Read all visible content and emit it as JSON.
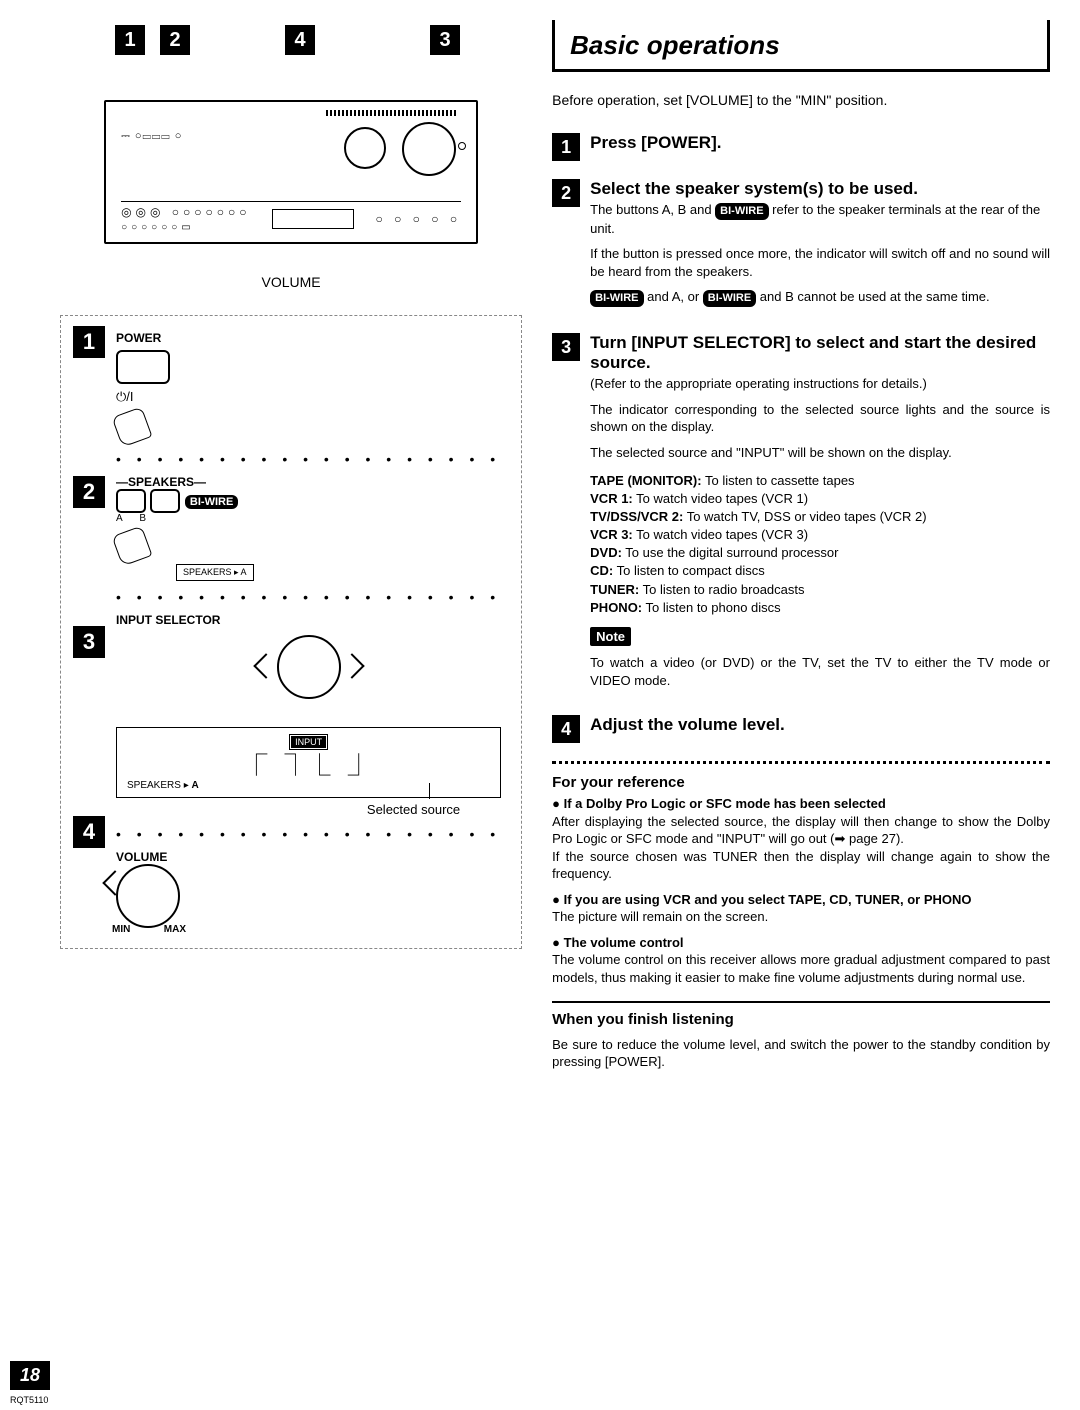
{
  "title": "Basic operations",
  "intro": "Before operation, set [VOLUME] to the \"MIN\" position.",
  "steps": [
    {
      "num": "1",
      "title": "Press [POWER]."
    },
    {
      "num": "2",
      "title": "Select the speaker system(s) to be used.",
      "sub_before": "The buttons A, B and ",
      "badge1": "BI-WIRE",
      "sub_after": " refer to the speaker terminals at the rear of the unit.",
      "para1": "If the button is pressed once more, the indicator will switch off and no sound will be heard from the speakers.",
      "badge2a": "BI-WIRE",
      "mid1": " and A, or ",
      "badge2b": "BI-WIRE",
      "mid2": " and B cannot be used at the same time."
    },
    {
      "num": "3",
      "title": "Turn [INPUT SELECTOR] to select and start the desired source.",
      "sub": "(Refer to the appropriate operating instructions for details.)",
      "para1": "The indicator corresponding to the selected source lights and the source is shown on the display.",
      "para2": "The selected source and \"INPUT\" will be shown on the display.",
      "sources": [
        {
          "k": "TAPE (MONITOR):",
          "v": " To listen to cassette tapes"
        },
        {
          "k": "VCR 1:",
          "v": " To watch video tapes (VCR 1)"
        },
        {
          "k": "TV/DSS/VCR 2:",
          "v": " To watch TV, DSS or video tapes (VCR 2)"
        },
        {
          "k": "VCR 3:",
          "v": " To watch video tapes (VCR 3)"
        },
        {
          "k": "DVD:",
          "v": " To use the digital surround processor"
        },
        {
          "k": "CD:",
          "v": " To listen to compact discs"
        },
        {
          "k": "TUNER:",
          "v": " To listen to radio broadcasts"
        },
        {
          "k": "PHONO:",
          "v": " To listen to phono discs"
        }
      ],
      "note_label": "Note",
      "note_text": "To watch a video (or DVD) or the TV, set the TV to either the TV mode or VIDEO mode."
    },
    {
      "num": "4",
      "title": "Adjust the volume level."
    }
  ],
  "reference": {
    "heading": "For your reference",
    "items": [
      {
        "bold": "If a Dolby Pro Logic or SFC mode has been selected",
        "body": "After displaying the selected source, the display will then change to show the Dolby Pro Logic or SFC mode and \"INPUT\" will go out (➡ page 27).\nIf the source chosen was TUNER then the display will change again to show the frequency."
      },
      {
        "bold": "If you are using VCR and you select TAPE, CD, TUNER, or PHONO",
        "body": "The picture will remain on the screen."
      },
      {
        "bold": "The volume control",
        "body": "The volume control on this receiver allows more gradual adjustment compared to past models, thus making it easier to make fine volume adjustments during normal use."
      }
    ]
  },
  "finish": {
    "heading": "When you finish listening",
    "body": "Be sure to reduce the volume level, and switch the power to the standby condition by pressing [POWER]."
  },
  "left": {
    "volume_label": "VOLUME",
    "power_label": "POWER",
    "standby_sym": "⏻/I",
    "speakers_label": "SPEAKERS",
    "a": "A",
    "b": "B",
    "biwire": "BI-WIRE",
    "speakers_ind": "SPEAKERS ▸ A",
    "input_sel": "INPUT SELECTOR",
    "input_badge": "INPUT",
    "digital": "⎾  ⏋⎿  ⏌",
    "selected_source": "Selected source",
    "volume2": "VOLUME",
    "min": "MIN",
    "max": "MAX",
    "callouts": [
      "1",
      "2",
      "4",
      "3"
    ]
  },
  "page_num": "18",
  "page_code": "RQT5110"
}
